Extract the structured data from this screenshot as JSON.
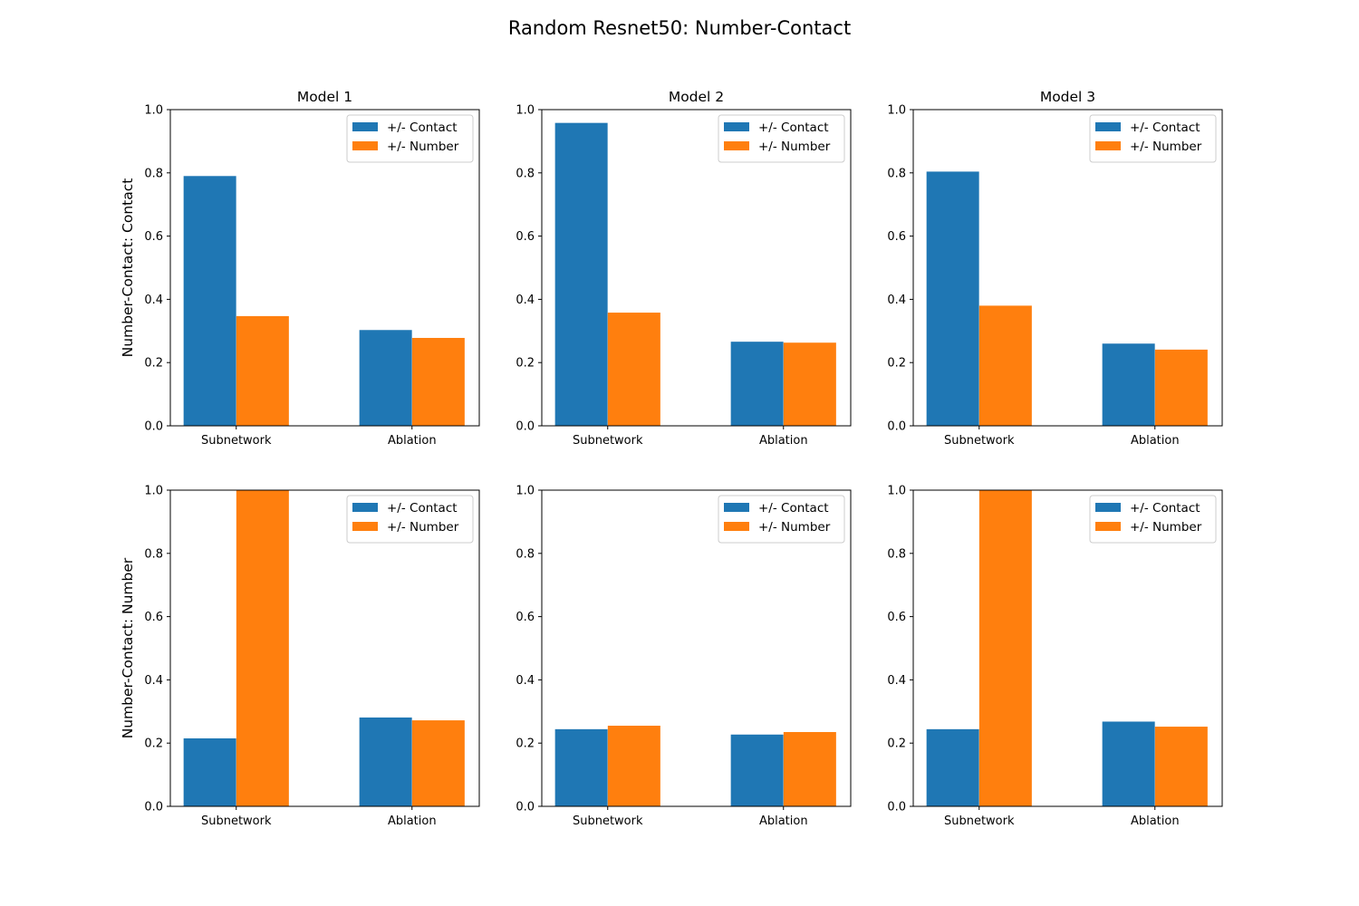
{
  "figure": {
    "title": "Random Resnet50: Number-Contact"
  },
  "colors": {
    "contact": "#1f77b4",
    "number": "#ff7f0e"
  },
  "chart_data": [
    {
      "type": "bar",
      "row": 0,
      "col": 0,
      "title": "Model 1",
      "ylabel": "Number-Contact: Contact",
      "categories": [
        "Subnetwork",
        "Ablation"
      ],
      "ylim": [
        0,
        1.0
      ],
      "yticks": [
        "0.0",
        "0.2",
        "0.4",
        "0.6",
        "0.8",
        "1.0"
      ],
      "legend_position": "upper right",
      "series": [
        {
          "name": "+/- Contact",
          "values": [
            0.79,
            0.303
          ]
        },
        {
          "name": "+/- Number",
          "values": [
            0.347,
            0.278
          ]
        }
      ]
    },
    {
      "type": "bar",
      "row": 0,
      "col": 1,
      "title": "Model 2",
      "ylabel": "",
      "categories": [
        "Subnetwork",
        "Ablation"
      ],
      "ylim": [
        0,
        1.0
      ],
      "yticks": [
        "0.0",
        "0.2",
        "0.4",
        "0.6",
        "0.8",
        "1.0"
      ],
      "legend_position": "upper right",
      "series": [
        {
          "name": "+/- Contact",
          "values": [
            0.958,
            0.266
          ]
        },
        {
          "name": "+/- Number",
          "values": [
            0.358,
            0.263
          ]
        }
      ]
    },
    {
      "type": "bar",
      "row": 0,
      "col": 2,
      "title": "Model 3",
      "ylabel": "",
      "categories": [
        "Subnetwork",
        "Ablation"
      ],
      "ylim": [
        0,
        1.0
      ],
      "yticks": [
        "0.0",
        "0.2",
        "0.4",
        "0.6",
        "0.8",
        "1.0"
      ],
      "legend_position": "upper right",
      "series": [
        {
          "name": "+/- Contact",
          "values": [
            0.804,
            0.26
          ]
        },
        {
          "name": "+/- Number",
          "values": [
            0.38,
            0.241
          ]
        }
      ]
    },
    {
      "type": "bar",
      "row": 1,
      "col": 0,
      "title": "",
      "ylabel": "Number-Contact: Number",
      "categories": [
        "Subnetwork",
        "Ablation"
      ],
      "ylim": [
        0,
        1.0
      ],
      "yticks": [
        "0.0",
        "0.2",
        "0.4",
        "0.6",
        "0.8",
        "1.0"
      ],
      "legend_position": "upper right",
      "series": [
        {
          "name": "+/- Contact",
          "values": [
            0.215,
            0.281
          ]
        },
        {
          "name": "+/- Number",
          "values": [
            1.0,
            0.272
          ]
        }
      ]
    },
    {
      "type": "bar",
      "row": 1,
      "col": 1,
      "title": "",
      "ylabel": "",
      "categories": [
        "Subnetwork",
        "Ablation"
      ],
      "ylim": [
        0,
        1.0
      ],
      "yticks": [
        "0.0",
        "0.2",
        "0.4",
        "0.6",
        "0.8",
        "1.0"
      ],
      "legend_position": "upper right",
      "series": [
        {
          "name": "+/- Contact",
          "values": [
            0.244,
            0.227
          ]
        },
        {
          "name": "+/- Number",
          "values": [
            0.255,
            0.235
          ]
        }
      ]
    },
    {
      "type": "bar",
      "row": 1,
      "col": 2,
      "title": "",
      "ylabel": "",
      "categories": [
        "Subnetwork",
        "Ablation"
      ],
      "ylim": [
        0,
        1.0
      ],
      "yticks": [
        "0.0",
        "0.2",
        "0.4",
        "0.6",
        "0.8",
        "1.0"
      ],
      "legend_position": "upper right",
      "series": [
        {
          "name": "+/- Contact",
          "values": [
            0.244,
            0.268
          ]
        },
        {
          "name": "+/- Number",
          "values": [
            1.0,
            0.252
          ]
        }
      ]
    }
  ]
}
